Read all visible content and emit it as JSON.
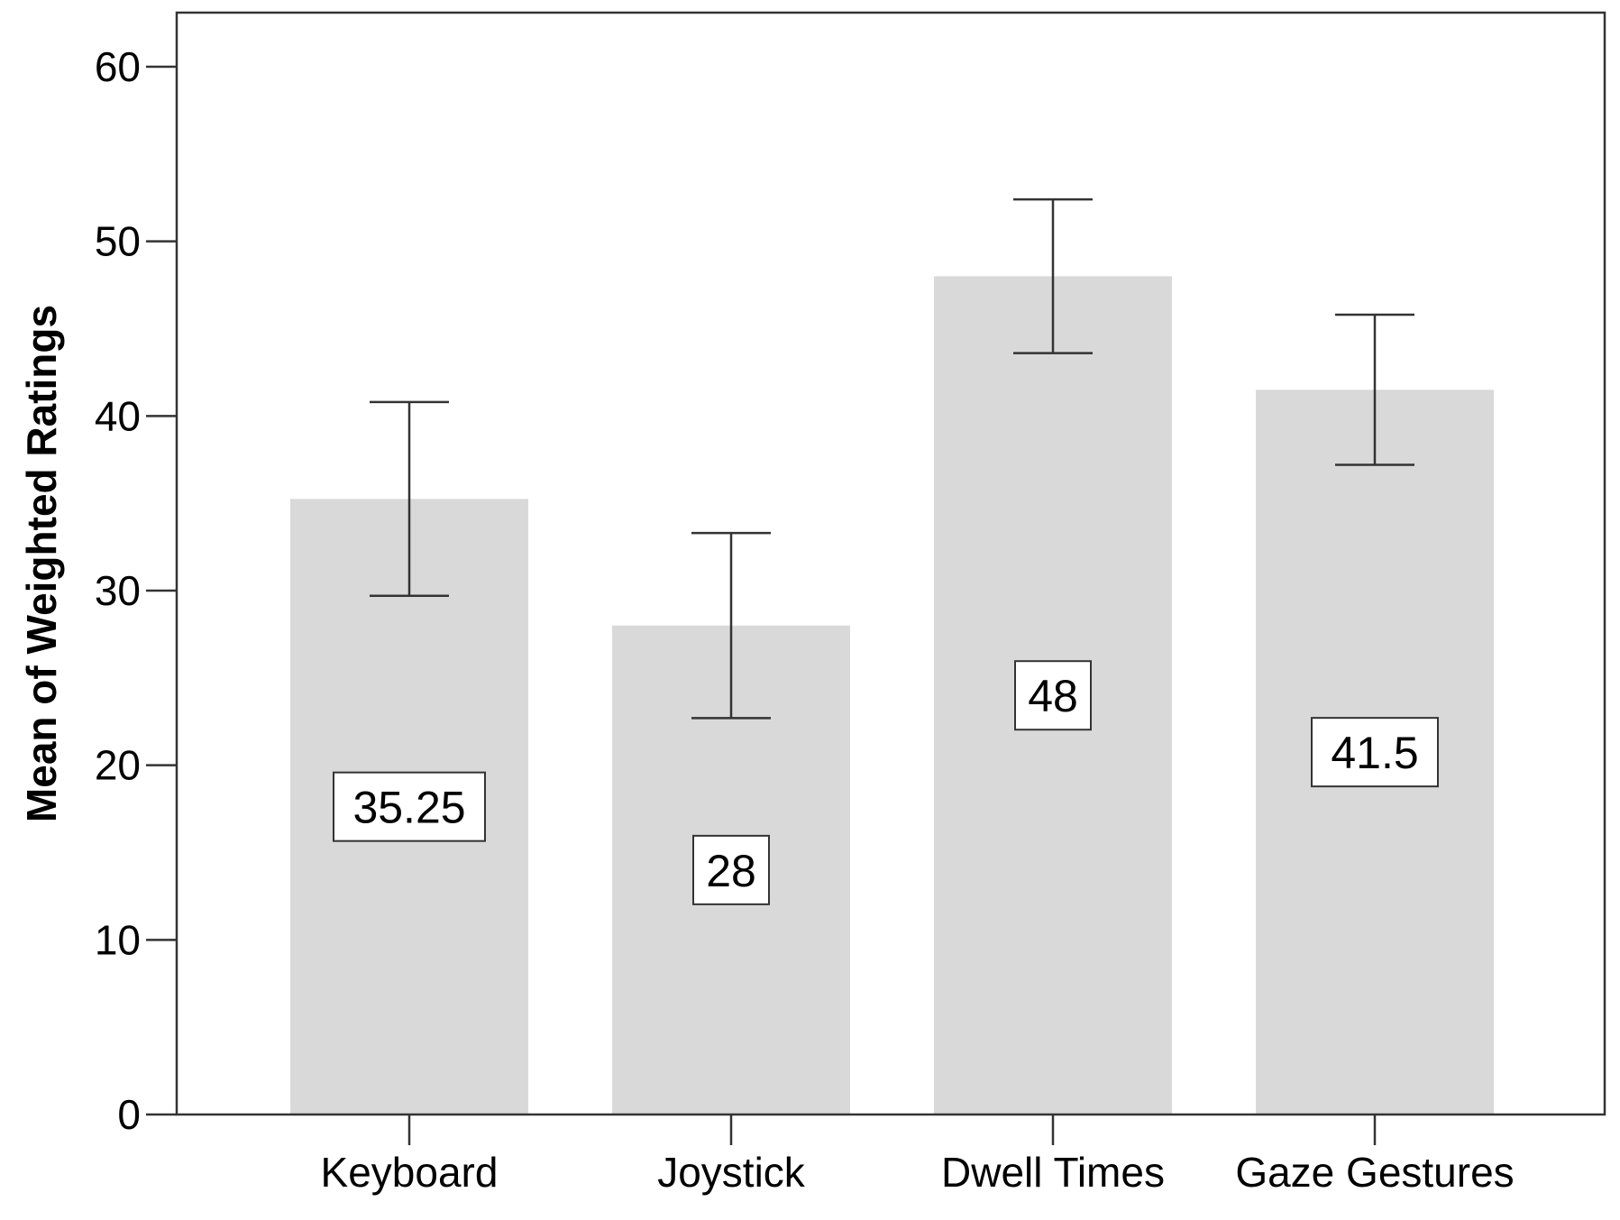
{
  "chart_data": {
    "type": "bar",
    "categories": [
      "Keyboard",
      "Joystick",
      "Dwell Times",
      "Gaze Gestures"
    ],
    "values": [
      35.25,
      28,
      48,
      41.5
    ],
    "data_labels": [
      "35.25",
      "28",
      "48",
      "41.5"
    ],
    "error_bars": [
      {
        "low": 29.7,
        "high": 40.8
      },
      {
        "low": 22.7,
        "high": 33.3
      },
      {
        "low": 43.6,
        "high": 52.4
      },
      {
        "low": 37.2,
        "high": 45.8
      }
    ],
    "title": "",
    "xlabel": "",
    "ylabel": "Mean of Weighted Ratings",
    "ylim": [
      0,
      60
    ],
    "yticks": [
      0,
      10,
      20,
      30,
      40,
      50,
      60
    ],
    "ytick_labels": [
      "0",
      "10",
      "20",
      "30",
      "40",
      "50",
      "60"
    ],
    "grid": false,
    "legend": "none",
    "colors": {
      "bar": "#d9d9d9",
      "axis": "#333333",
      "error_bar": "#333333",
      "background": "#ffffff"
    }
  }
}
